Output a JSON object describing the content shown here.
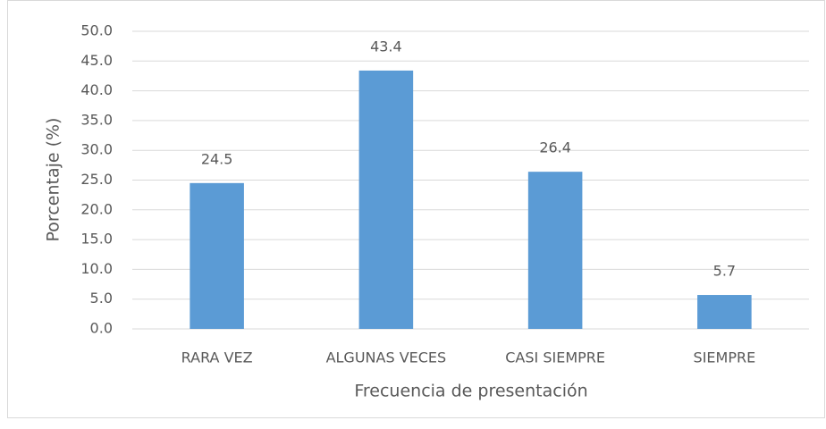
{
  "chart_data": {
    "type": "bar",
    "categories": [
      "RARA VEZ",
      "ALGUNAS VECES",
      "CASI SIEMPRE",
      "SIEMPRE"
    ],
    "values": [
      24.5,
      43.4,
      26.4,
      5.7
    ],
    "color": "#5b9bd5",
    "x_label": "Frecuencia de presentación",
    "y_label": "Porcentaje (%)",
    "ylim": [
      0,
      50
    ],
    "yticks": [
      {
        "value": 0,
        "label": "0.0"
      },
      {
        "value": 5,
        "label": "5.0"
      },
      {
        "value": 10,
        "label": "10.0"
      },
      {
        "value": 15,
        "label": "15.0"
      },
      {
        "value": 20,
        "label": "20.0"
      },
      {
        "value": 25,
        "label": "25.0"
      },
      {
        "value": 30,
        "label": "30.0"
      },
      {
        "value": 35,
        "label": "35.0"
      },
      {
        "value": 40,
        "label": "40.0"
      },
      {
        "value": 45,
        "label": "45.0"
      },
      {
        "value": 50,
        "label": "50.0"
      }
    ],
    "grid": true
  }
}
